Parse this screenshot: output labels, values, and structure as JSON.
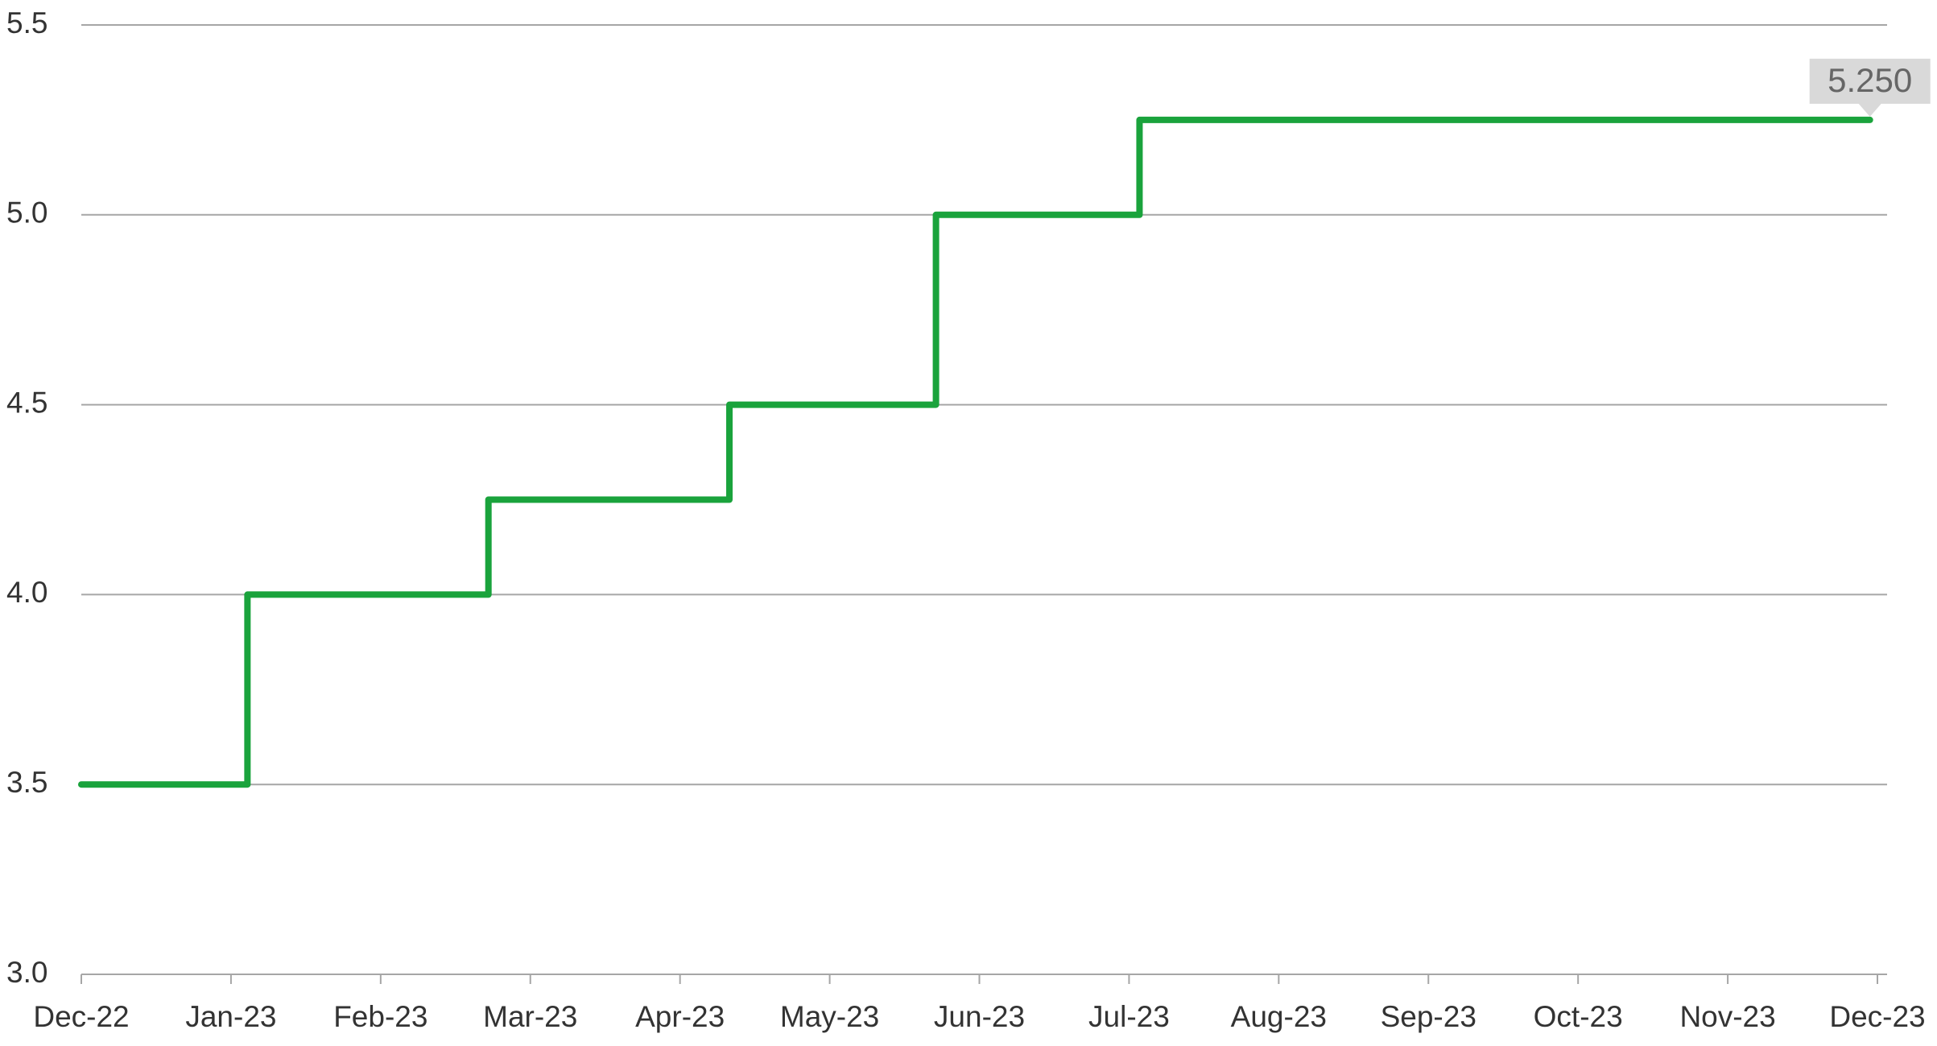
{
  "chart_data": {
    "type": "line",
    "x": [
      0,
      1.11,
      1.11,
      2.72,
      2.72,
      4.33,
      4.33,
      5.71,
      5.71,
      7.07,
      7.07,
      11.95
    ],
    "series": [
      {
        "color": "#1aa33c",
        "values": [
          3.5,
          3.5,
          4.0,
          4.0,
          4.25,
          4.25,
          4.5,
          4.5,
          5.0,
          5.0,
          5.25,
          5.25
        ],
        "value_labels": [
          null,
          null,
          null,
          null,
          null,
          null,
          null,
          null,
          null,
          null,
          null,
          "5.250"
        ]
      }
    ],
    "xlim": [
      0,
      12
    ],
    "xticks": [
      {
        "value": 0,
        "label": "Dec-22"
      },
      {
        "value": 1,
        "label": "Jan-23"
      },
      {
        "value": 2,
        "label": "Feb-23"
      },
      {
        "value": 3,
        "label": "Mar-23"
      },
      {
        "value": 4,
        "label": "Apr-23"
      },
      {
        "value": 5,
        "label": "May-23"
      },
      {
        "value": 6,
        "label": "Jun-23"
      },
      {
        "value": 7,
        "label": "Jul-23"
      },
      {
        "value": 8,
        "label": "Aug-23"
      },
      {
        "value": 9,
        "label": "Sep-23"
      },
      {
        "value": 10,
        "label": "Oct-23"
      },
      {
        "value": 11,
        "label": "Nov-23"
      },
      {
        "value": 12,
        "label": "Dec-23"
      }
    ],
    "ylim": [
      3.0,
      5.5
    ],
    "yticks": [
      {
        "value": 3.0,
        "label": "3.0"
      },
      {
        "value": 3.5,
        "label": "3.5"
      },
      {
        "value": 4.0,
        "label": "4.0"
      },
      {
        "value": 4.5,
        "label": "4.5"
      },
      {
        "value": 5.0,
        "label": "5.0"
      },
      {
        "value": 5.5,
        "label": "5.5"
      }
    ],
    "grid": true
  }
}
